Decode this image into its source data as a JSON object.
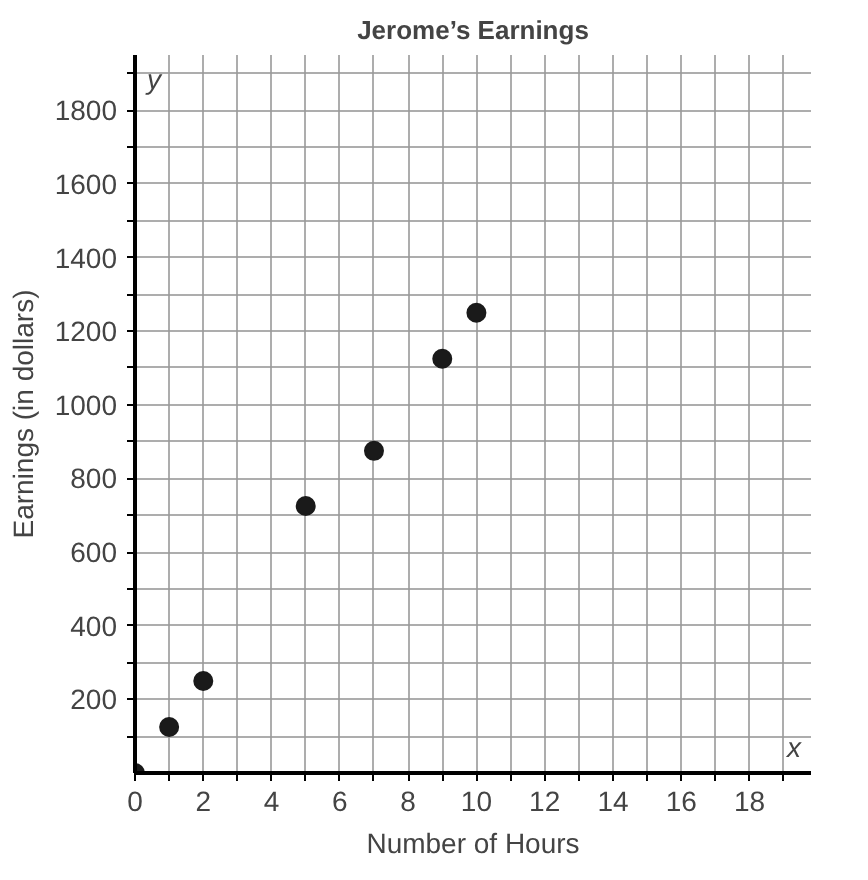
{
  "chart_data": {
    "type": "scatter",
    "title": "Jerome’s Earnings",
    "xlabel": "Number of Hours",
    "ylabel": "Earnings (in dollars)",
    "x": [
      0,
      1,
      2,
      5,
      7,
      9,
      10
    ],
    "series": [
      {
        "color": "#1a1a1a",
        "values": [
          0,
          125,
          250,
          725,
          875,
          1125,
          1250
        ]
      }
    ],
    "annotations": [
      "y",
      "x"
    ],
    "marker": "circle",
    "grid": true,
    "xlim": [
      0,
      19.8
    ],
    "ylim": [
      0,
      1950
    ],
    "xticks": [
      0,
      {
        "value": 1,
        "label": null
      },
      2,
      {
        "value": 3,
        "label": null
      },
      4,
      {
        "value": 5,
        "label": null
      },
      6,
      {
        "value": 7,
        "label": null
      },
      8,
      {
        "value": 9,
        "label": null
      },
      10,
      {
        "value": 11,
        "label": null
      },
      12,
      {
        "value": 13,
        "label": null
      },
      14,
      {
        "value": 15,
        "label": null
      },
      16,
      {
        "value": 17,
        "label": null
      },
      18,
      {
        "value": 19,
        "label": null
      }
    ],
    "yticks": [
      {
        "value": 100,
        "label": null
      },
      200,
      {
        "value": 300,
        "label": null
      },
      400,
      {
        "value": 500,
        "label": null
      },
      600,
      {
        "value": 700,
        "label": null
      },
      800,
      {
        "value": 900,
        "label": null
      },
      1000,
      {
        "value": 1100,
        "label": null
      },
      1200,
      {
        "value": 1300,
        "label": null
      },
      1400,
      {
        "value": 1500,
        "label": null
      },
      1600,
      {
        "value": 1700,
        "label": null
      },
      1800,
      {
        "value": 1900,
        "label": null
      }
    ]
  }
}
